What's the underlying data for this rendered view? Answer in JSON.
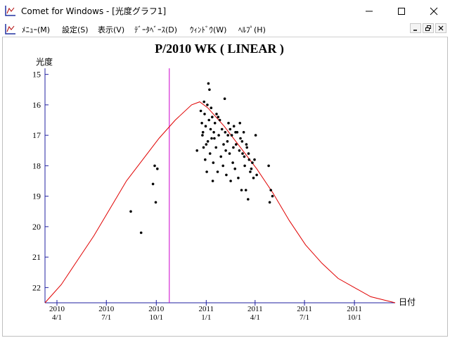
{
  "window": {
    "title": "Comet for Windows - [光度グラフ1]"
  },
  "menu": {
    "items": [
      {
        "label": "ﾒﾆｭｰ(M)"
      },
      {
        "label": "設定(S)"
      },
      {
        "label": "表示(V)"
      },
      {
        "label": "ﾃﾞｰﾀﾍﾞｰｽ(D)"
      },
      {
        "label": "ｳｨﾝﾄﾞｳ(W)"
      },
      {
        "label": "ﾍﾙﾌﾟ(H)"
      }
    ]
  },
  "colors": {
    "curve": "#e00000",
    "marker_line": "#cc00cc",
    "axis": "#2020a0",
    "points": "#000000"
  },
  "chart_data": {
    "type": "scatter",
    "title": "P/2010 WK ( LINEAR )",
    "ylabel": "光度",
    "xlabel": "日付",
    "y_inverted": true,
    "ylim": [
      22.5,
      14.8
    ],
    "y_ticks": [
      15,
      16,
      17,
      18,
      19,
      20,
      21,
      22
    ],
    "xlim": [
      "2010-03-10",
      "2011-12-15"
    ],
    "x_ticks": [
      {
        "year": "2010",
        "md": "4/1",
        "date": "2010-04-01"
      },
      {
        "year": "2010",
        "md": "7/1",
        "date": "2010-07-01"
      },
      {
        "year": "2010",
        "md": "10/1",
        "date": "2010-10-01"
      },
      {
        "year": "2011",
        "md": "1/1",
        "date": "2011-01-01"
      },
      {
        "year": "2011",
        "md": "4/1",
        "date": "2011-04-01"
      },
      {
        "year": "2011",
        "md": "7/1",
        "date": "2011-07-01"
      },
      {
        "year": "2011",
        "md": "10/1",
        "date": "2011-10-01"
      }
    ],
    "marker_date": "2010-10-25",
    "curve": [
      [
        "2010-03-10",
        22.5
      ],
      [
        "2010-04-09",
        21.9
      ],
      [
        "2010-05-09",
        21.1
      ],
      [
        "2010-06-08",
        20.3
      ],
      [
        "2010-07-08",
        19.4
      ],
      [
        "2010-08-07",
        18.5
      ],
      [
        "2010-09-06",
        17.8
      ],
      [
        "2010-10-06",
        17.1
      ],
      [
        "2010-11-05",
        16.5
      ],
      [
        "2010-12-05",
        16.0
      ],
      [
        "2010-12-20",
        15.9
      ],
      [
        "2011-01-04",
        16.1
      ],
      [
        "2011-02-03",
        16.7
      ],
      [
        "2011-03-05",
        17.4
      ],
      [
        "2011-04-04",
        18.1
      ],
      [
        "2011-05-04",
        18.9
      ],
      [
        "2011-06-03",
        19.8
      ],
      [
        "2011-07-03",
        20.6
      ],
      [
        "2011-08-02",
        21.2
      ],
      [
        "2011-09-01",
        21.7
      ],
      [
        "2011-10-01",
        22.0
      ],
      [
        "2011-10-31",
        22.3
      ],
      [
        "2011-12-15",
        22.5
      ]
    ],
    "points": [
      [
        "2010-08-15",
        19.5
      ],
      [
        "2010-09-03",
        20.2
      ],
      [
        "2010-09-25",
        18.6
      ],
      [
        "2010-09-28",
        18.0
      ],
      [
        "2010-09-30",
        19.2
      ],
      [
        "2010-10-03",
        18.1
      ],
      [
        "2010-12-15",
        17.5
      ],
      [
        "2010-12-22",
        16.2
      ],
      [
        "2010-12-24",
        16.6
      ],
      [
        "2010-12-25",
        17.0
      ],
      [
        "2010-12-27",
        17.4
      ],
      [
        "2010-12-28",
        15.9
      ],
      [
        "2010-12-29",
        16.3
      ],
      [
        "2010-12-30",
        17.8
      ],
      [
        "2010-12-31",
        16.7
      ],
      [
        "2011-01-02",
        18.2
      ],
      [
        "2011-01-03",
        16.0
      ],
      [
        "2011-01-04",
        17.2
      ],
      [
        "2011-01-05",
        15.3
      ],
      [
        "2011-01-06",
        16.5
      ],
      [
        "2011-01-07",
        15.5
      ],
      [
        "2011-01-08",
        17.6
      ],
      [
        "2011-01-09",
        16.8
      ],
      [
        "2011-01-10",
        16.1
      ],
      [
        "2011-01-11",
        17.1
      ],
      [
        "2011-01-12",
        16.4
      ],
      [
        "2011-01-13",
        18.5
      ],
      [
        "2011-01-14",
        17.9
      ],
      [
        "2011-01-15",
        16.9
      ],
      [
        "2011-01-17",
        16.6
      ],
      [
        "2011-01-19",
        17.4
      ],
      [
        "2011-01-20",
        16.3
      ],
      [
        "2011-01-22",
        18.2
      ],
      [
        "2011-01-24",
        17.0
      ],
      [
        "2011-01-26",
        16.5
      ],
      [
        "2011-01-28",
        17.7
      ],
      [
        "2011-01-30",
        16.8
      ],
      [
        "2011-02-01",
        18.0
      ],
      [
        "2011-02-02",
        17.3
      ],
      [
        "2011-02-04",
        15.8
      ],
      [
        "2011-02-05",
        16.9
      ],
      [
        "2011-02-07",
        18.3
      ],
      [
        "2011-02-09",
        17.2
      ],
      [
        "2011-02-11",
        16.6
      ],
      [
        "2011-02-13",
        17.6
      ],
      [
        "2011-02-15",
        18.5
      ],
      [
        "2011-02-17",
        17.0
      ],
      [
        "2011-02-19",
        17.9
      ],
      [
        "2011-02-21",
        16.7
      ],
      [
        "2011-02-23",
        18.1
      ],
      [
        "2011-02-25",
        17.3
      ],
      [
        "2011-02-27",
        16.9
      ],
      [
        "2011-03-01",
        18.4
      ],
      [
        "2011-03-03",
        17.5
      ],
      [
        "2011-03-05",
        17.1
      ],
      [
        "2011-03-07",
        18.8
      ],
      [
        "2011-03-09",
        17.6
      ],
      [
        "2011-03-11",
        16.9
      ],
      [
        "2011-03-13",
        18.0
      ],
      [
        "2011-03-15",
        18.8
      ],
      [
        "2011-03-17",
        17.4
      ],
      [
        "2011-03-19",
        19.1
      ],
      [
        "2011-03-21",
        17.8
      ],
      [
        "2011-03-23",
        18.2
      ],
      [
        "2011-03-27",
        17.9
      ],
      [
        "2011-03-29",
        18.4
      ],
      [
        "2011-03-31",
        17.8
      ],
      [
        "2011-04-02",
        17.0
      ],
      [
        "2011-04-04",
        18.3
      ],
      [
        "2011-04-26",
        18.0
      ],
      [
        "2011-04-28",
        19.2
      ],
      [
        "2011-04-30",
        18.8
      ],
      [
        "2011-05-03",
        19.0
      ],
      [
        "2010-12-26",
        16.9
      ],
      [
        "2011-01-01",
        17.3
      ],
      [
        "2011-01-16",
        17.1
      ],
      [
        "2011-01-23",
        16.4
      ],
      [
        "2011-02-06",
        17.5
      ],
      [
        "2011-02-10",
        17.0
      ],
      [
        "2011-02-14",
        16.8
      ],
      [
        "2011-02-20",
        17.4
      ],
      [
        "2011-02-24",
        16.9
      ],
      [
        "2011-03-04",
        16.6
      ],
      [
        "2011-03-08",
        17.2
      ],
      [
        "2011-03-12",
        17.7
      ],
      [
        "2011-03-16",
        17.3
      ],
      [
        "2011-03-20",
        17.6
      ],
      [
        "2011-03-25",
        18.1
      ]
    ]
  }
}
